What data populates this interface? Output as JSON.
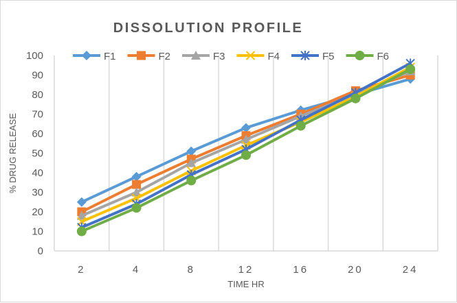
{
  "chart_data": {
    "type": "line",
    "title": "DISSOLUTION PROFILE",
    "xlabel": "TIME HR",
    "ylabel": "% DRUG RELEASE",
    "categories": [
      "2",
      "4",
      "8",
      "12",
      "16",
      "20",
      "24"
    ],
    "ylim": [
      0,
      100
    ],
    "yticks": [
      0,
      10,
      20,
      30,
      40,
      50,
      60,
      70,
      80,
      90,
      100
    ],
    "grid": "vertical",
    "legend": "top",
    "series": [
      {
        "name": "F1",
        "color": "#5B9BD5",
        "marker": "diamond",
        "values": [
          25,
          38,
          51,
          63,
          72,
          80,
          88
        ]
      },
      {
        "name": "F2",
        "color": "#ED7D31",
        "marker": "square",
        "values": [
          20,
          34,
          47,
          59,
          70,
          82,
          90
        ]
      },
      {
        "name": "F3",
        "color": "#A5A5A5",
        "marker": "triangle",
        "values": [
          18,
          30,
          45,
          57,
          69,
          80,
          92
        ]
      },
      {
        "name": "F4",
        "color": "#FFC000",
        "marker": "x",
        "values": [
          15,
          27,
          41,
          54,
          66,
          79,
          94
        ]
      },
      {
        "name": "F5",
        "color": "#4472C4",
        "marker": "star",
        "values": [
          12,
          24,
          39,
          52,
          67,
          81,
          96
        ]
      },
      {
        "name": "F6",
        "color": "#70AD47",
        "marker": "circle",
        "values": [
          10,
          22,
          36,
          49,
          64,
          78,
          93
        ]
      }
    ]
  }
}
